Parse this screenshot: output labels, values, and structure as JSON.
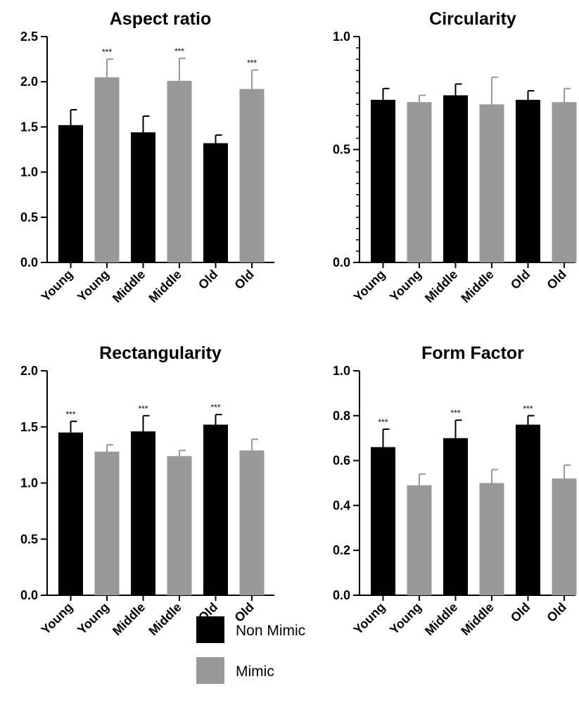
{
  "legend": {
    "entries": [
      {
        "label": "Non Mimic",
        "color": "#000000"
      },
      {
        "label": "Mimic",
        "color": "#999999"
      }
    ]
  },
  "chart_data": [
    {
      "type": "bar",
      "title": "Aspect ratio",
      "categories": [
        "Young",
        "Young",
        "Middle",
        "Middle",
        "Old",
        "Old"
      ],
      "groups": [
        "Non Mimic",
        "Mimic",
        "Non Mimic",
        "Mimic",
        "Non Mimic",
        "Mimic"
      ],
      "values": [
        1.52,
        2.05,
        1.44,
        2.01,
        1.32,
        1.92
      ],
      "errors": [
        0.17,
        0.2,
        0.18,
        0.25,
        0.09,
        0.21
      ],
      "significance": [
        "",
        "***",
        "",
        "***",
        "",
        "***"
      ],
      "ylim": [
        0,
        2.5
      ],
      "yticks": [
        "0.0",
        "0.5",
        "1.0",
        "1.5",
        "2.0",
        "2.5"
      ],
      "ytick_values": [
        0,
        0.5,
        1.0,
        1.5,
        2.0,
        2.5
      ],
      "minor_ticks": 0,
      "xlabel": "",
      "ylabel": ""
    },
    {
      "type": "bar",
      "title": "Circularity",
      "categories": [
        "Young",
        "Young",
        "Middle",
        "Middle",
        "Old",
        "Old"
      ],
      "groups": [
        "Non Mimic",
        "Mimic",
        "Non Mimic",
        "Mimic",
        "Non Mimic",
        "Mimic"
      ],
      "values": [
        0.72,
        0.71,
        0.74,
        0.7,
        0.72,
        0.71
      ],
      "errors": [
        0.05,
        0.03,
        0.05,
        0.12,
        0.04,
        0.06
      ],
      "significance": [
        "",
        "",
        "",
        "",
        "",
        ""
      ],
      "ylim": [
        0,
        1.0
      ],
      "yticks": [
        "0.0",
        "0.5",
        "1.0"
      ],
      "ytick_values": [
        0,
        0.5,
        1.0
      ],
      "minor_ticks": 9,
      "xlabel": "",
      "ylabel": ""
    },
    {
      "type": "bar",
      "title": "Rectangularity",
      "categories": [
        "Young",
        "Young",
        "Middle",
        "Middle",
        "Old",
        "Old"
      ],
      "groups": [
        "Non Mimic",
        "Mimic",
        "Non Mimic",
        "Mimic",
        "Non Mimic",
        "Mimic"
      ],
      "values": [
        1.45,
        1.28,
        1.46,
        1.24,
        1.52,
        1.29
      ],
      "errors": [
        0.1,
        0.06,
        0.14,
        0.05,
        0.09,
        0.1
      ],
      "significance": [
        "***",
        "",
        "***",
        "",
        "***",
        ""
      ],
      "ylim": [
        0,
        2.0
      ],
      "yticks": [
        "0.0",
        "0.5",
        "1.0",
        "1.5",
        "2.0"
      ],
      "ytick_values": [
        0,
        0.5,
        1.0,
        1.5,
        2.0
      ],
      "minor_ticks": 0,
      "xlabel": "",
      "ylabel": ""
    },
    {
      "type": "bar",
      "title": "Form Factor",
      "categories": [
        "Young",
        "Young",
        "Middle",
        "Middle",
        "Old",
        "Old"
      ],
      "groups": [
        "Non Mimic",
        "Mimic",
        "Non Mimic",
        "Mimic",
        "Non Mimic",
        "Mimic"
      ],
      "values": [
        0.66,
        0.49,
        0.7,
        0.5,
        0.76,
        0.52
      ],
      "errors": [
        0.08,
        0.05,
        0.08,
        0.06,
        0.04,
        0.06
      ],
      "significance": [
        "***",
        "",
        "***",
        "",
        "***",
        ""
      ],
      "ylim": [
        0,
        1.0
      ],
      "yticks": [
        "0.0",
        "0.2",
        "0.4",
        "0.6",
        "0.8",
        "1.0"
      ],
      "ytick_values": [
        0,
        0.2,
        0.4,
        0.6,
        0.8,
        1.0
      ],
      "minor_ticks": 0,
      "xlabel": "",
      "ylabel": ""
    }
  ]
}
